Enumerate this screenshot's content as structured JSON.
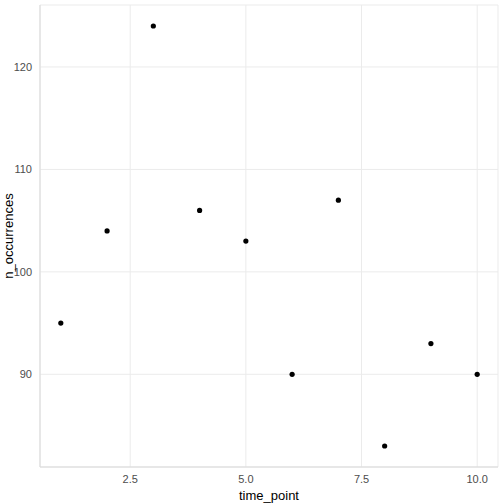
{
  "chart_data": {
    "type": "scatter",
    "xlabel": "time_point",
    "ylabel": "n_occurrences",
    "x": [
      1,
      2,
      3,
      4,
      5,
      6,
      7,
      8,
      9,
      10
    ],
    "values": [
      95,
      104,
      124,
      106,
      103,
      90,
      107,
      83,
      93,
      90
    ],
    "color": "#000000",
    "xlim": [
      0.55,
      10.45
    ],
    "ylim": [
      80.95,
      126.05
    ],
    "xticks": [
      2.5,
      {
        "value": 5,
        "label": "5.0"
      },
      7.5,
      {
        "value": 10,
        "label": "10.0"
      }
    ],
    "yticks": [
      90,
      100,
      110,
      120
    ],
    "grid": true
  }
}
